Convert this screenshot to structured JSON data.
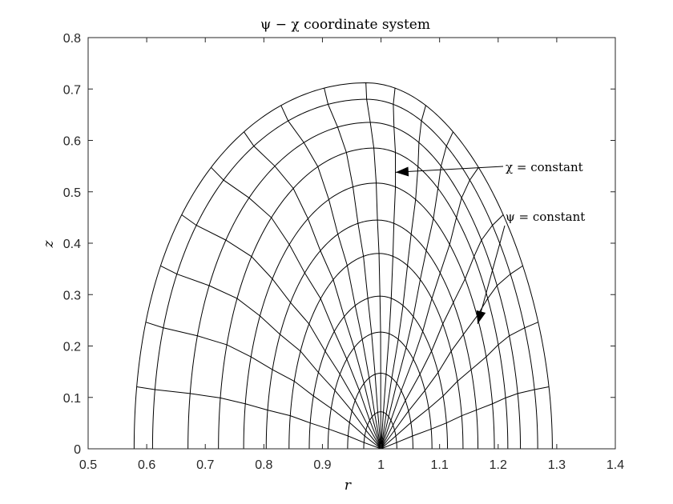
{
  "chart_data": {
    "type": "line",
    "title": "ψ − χ coordinate system",
    "xlabel": "r",
    "ylabel": "z",
    "xlim": [
      0.5,
      1.4
    ],
    "ylim": [
      0,
      0.8
    ],
    "xticks": [
      "0.5",
      "0.6",
      "0.7",
      "0.8",
      "0.9",
      "1",
      "1.1",
      "1.2",
      "1.3",
      "1.4"
    ],
    "yticks": [
      "0",
      "0.1",
      "0.2",
      "0.3",
      "0.4",
      "0.5",
      "0.6",
      "0.7",
      "0.8"
    ],
    "grid": false,
    "o_point": [
      1,
      0
    ],
    "psi_curves_r_intercepts": [
      [
        0.9705,
        1.027
      ],
      [
        0.943,
        1.0545
      ],
      [
        0.9095,
        1.087
      ],
      [
        0.8775,
        1.1135
      ],
      [
        0.843,
        1.14
      ],
      [
        0.804,
        1.1655
      ],
      [
        0.7655,
        1.1935
      ],
      [
        0.7225,
        1.2165
      ],
      [
        0.6705,
        1.238
      ],
      [
        0.61,
        1.2675
      ],
      [
        0.5785,
        1.2925
      ]
    ],
    "psi_curves_peak_z": [
      0.072,
      0.147,
      0.227,
      0.297,
      0.38,
      0.445,
      0.517,
      0.585,
      0.635,
      0.68,
      0.712
    ],
    "chi_count": 19,
    "annotations": [
      {
        "text": "χ = constant",
        "arrow_tip": [
          1.025,
          0.538
        ]
      },
      {
        "text": "ψ = constant",
        "arrow_tip": [
          1.165,
          0.243
        ]
      }
    ]
  },
  "labels": {
    "title": "ψ − χ coordinate system",
    "xlabel": "r",
    "ylabel": "z",
    "chi_annotation": "χ = constant",
    "psi_annotation": "ψ = constant"
  }
}
